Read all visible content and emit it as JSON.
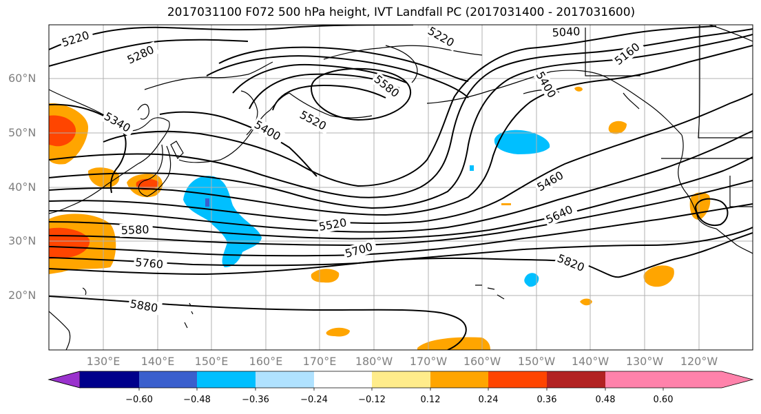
{
  "title": "2017031100 F072 500 hPa height, IVT Landfall PC (2017031400 - 2017031600)",
  "lat_labels": [
    "60°N",
    "50°N",
    "40°N",
    "30°N",
    "20°N"
  ],
  "lon_labels": [
    "130°E",
    "140°E",
    "150°E",
    "160°E",
    "170°E",
    "180°W",
    "170°W",
    "160°W",
    "150°W",
    "140°W",
    "130°W",
    "120°W"
  ],
  "contour_labels": [
    "5220",
    "5280",
    "5340",
    "5400",
    "5520",
    "5580",
    "5220",
    "5040",
    "5160",
    "5400",
    "5460",
    "5640",
    "5520",
    "5700",
    "5580",
    "5760",
    "5820",
    "5880"
  ],
  "colorbar": {
    "colors": [
      "#9a32cd",
      "#00008b",
      "#3a5fcd",
      "#00bfff",
      "#b0e2ff",
      "#ffffff",
      "#ffec8b",
      "#ffa500",
      "#ff4500",
      "#b22222",
      "#ff82ab"
    ],
    "labels": [
      "−0.60",
      "−0.48",
      "−0.36",
      "−0.24",
      "−0.12",
      "0.12",
      "0.24",
      "0.36",
      "0.48",
      "0.60"
    ]
  }
}
